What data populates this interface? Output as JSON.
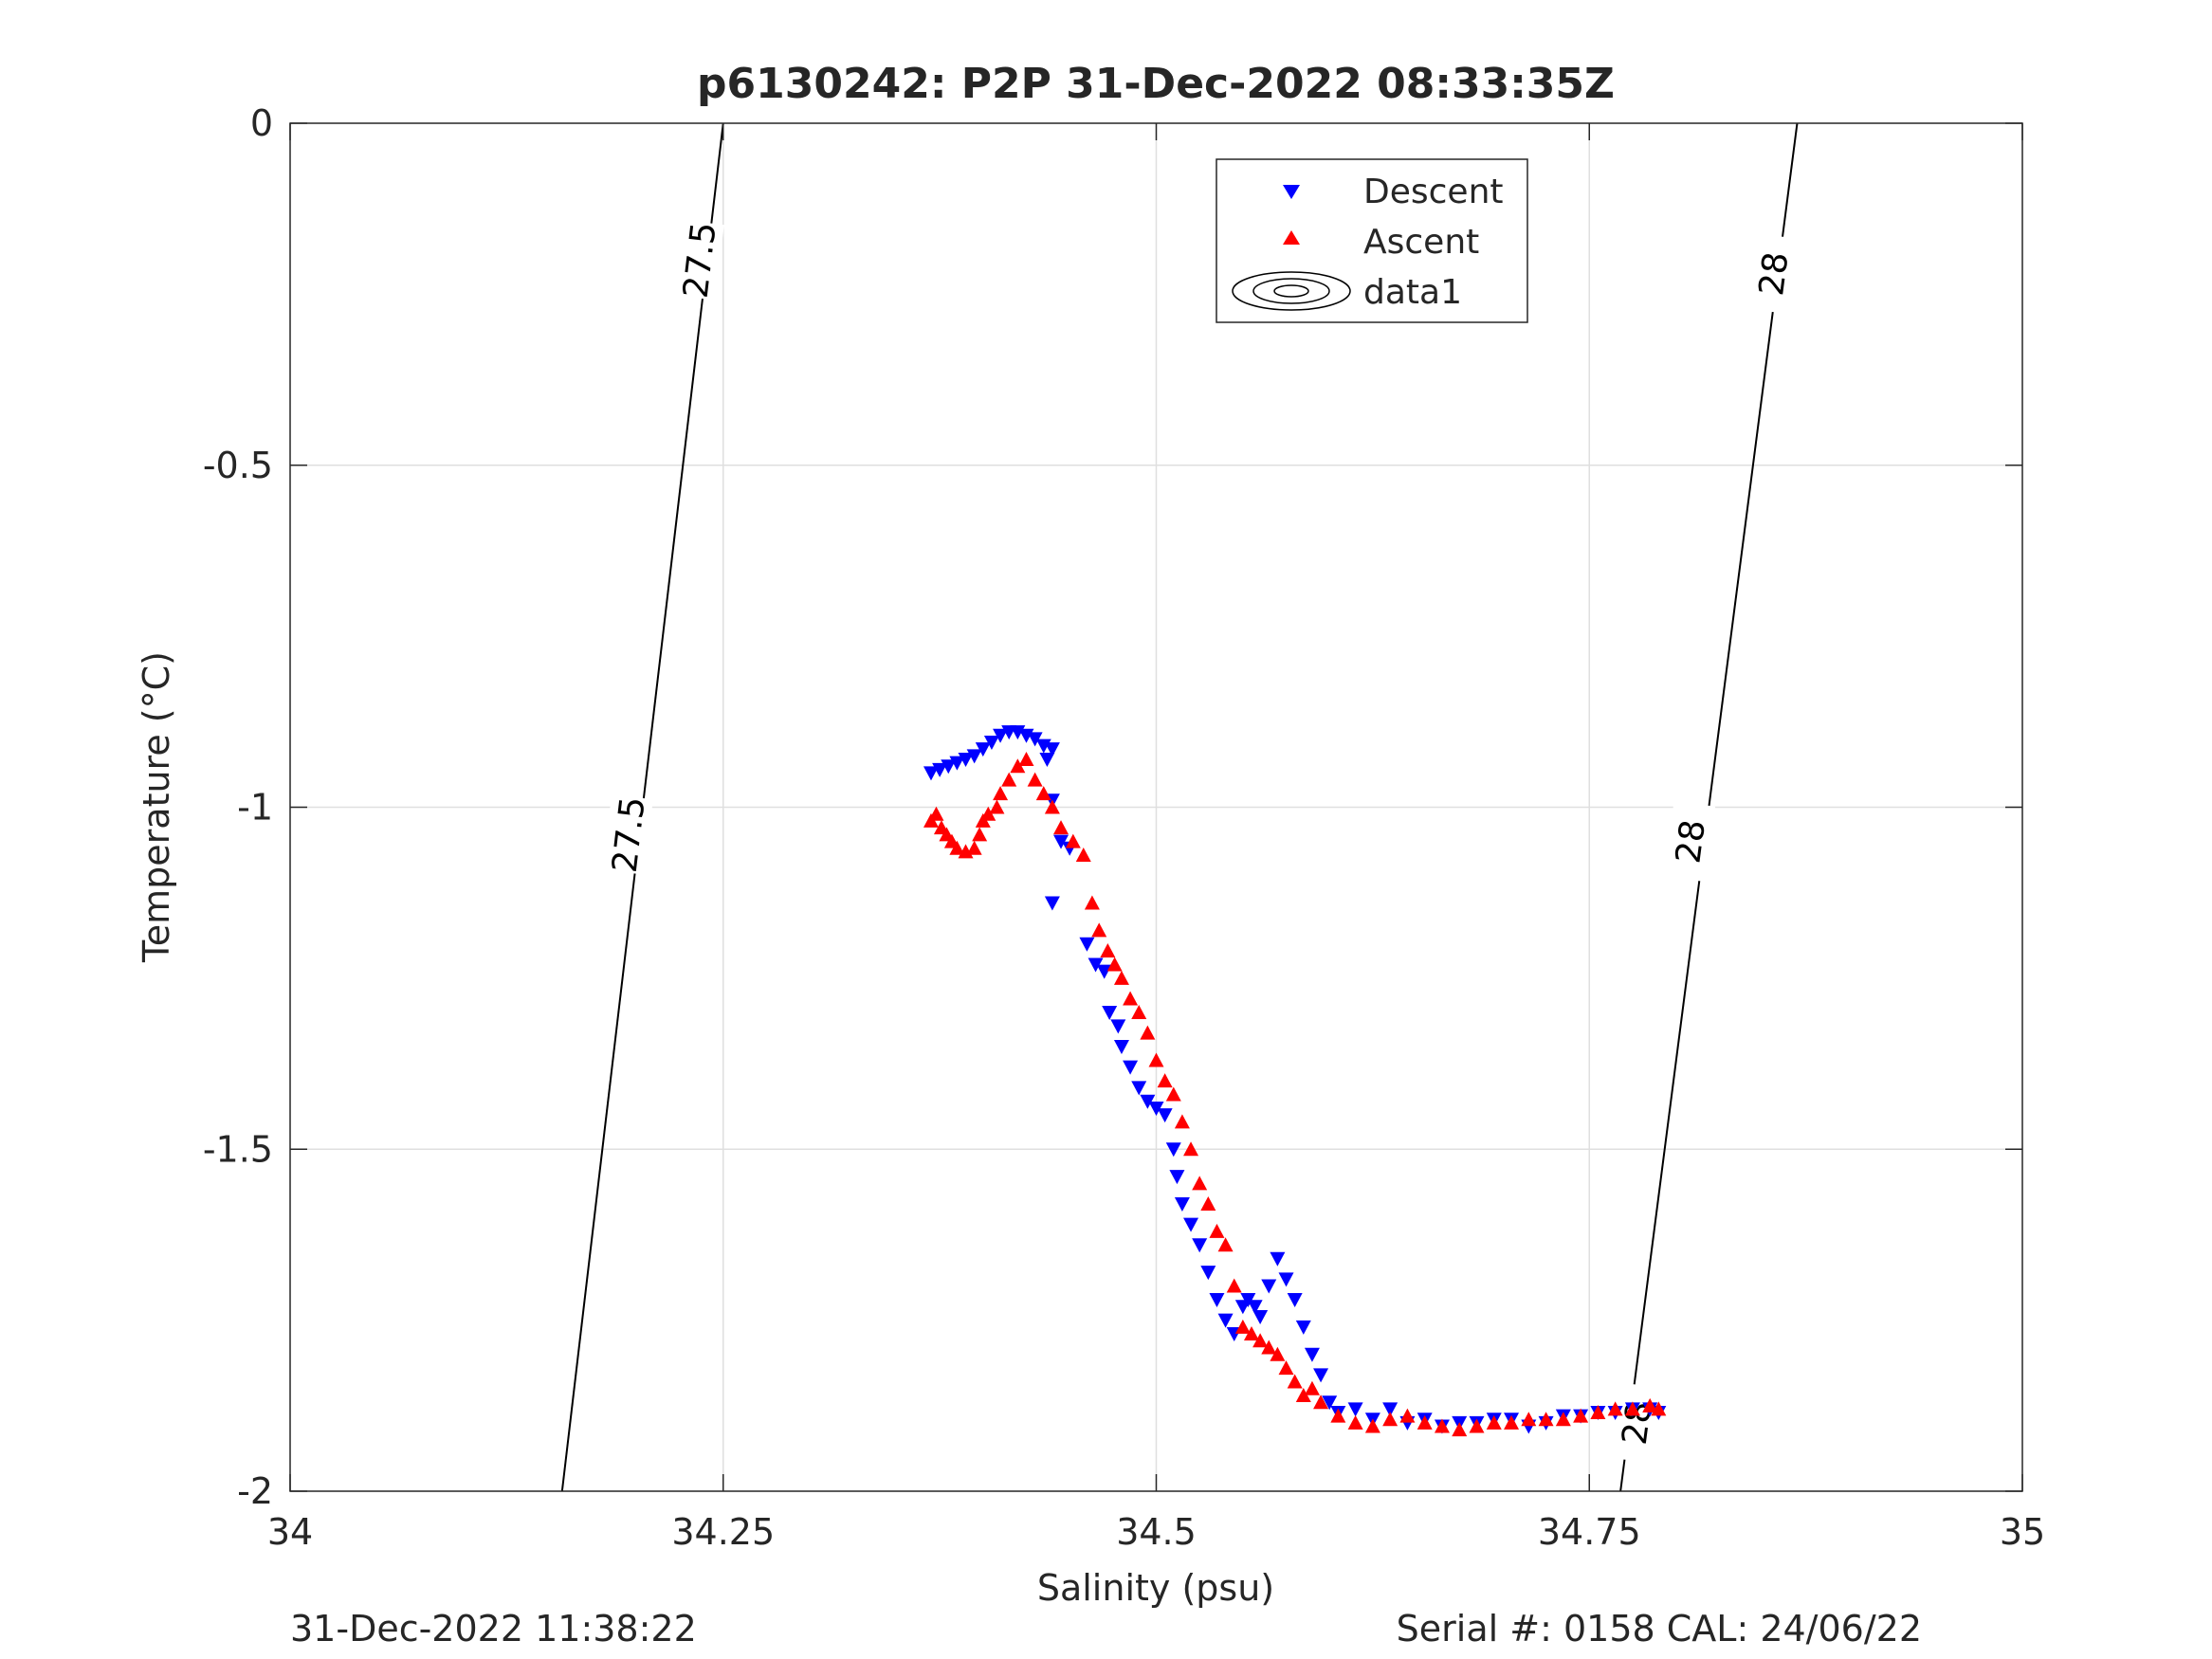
{
  "chart_data": {
    "type": "scatter",
    "title": "p6130242: P2P 31-Dec-2022 08:33:35Z",
    "xlabel": "Salinity (psu)",
    "ylabel": "Temperature (°C)",
    "xlim": [
      34,
      35
    ],
    "ylim": [
      -2,
      0
    ],
    "x_ticks": [
      34,
      34.25,
      34.5,
      34.75,
      35
    ],
    "x_tick_labels": [
      "34",
      "34.25",
      "34.5",
      "34.75",
      "35"
    ],
    "y_ticks": [
      0,
      -0.5,
      -1,
      -1.5,
      -2
    ],
    "y_tick_labels": [
      "0",
      "-0.5",
      "-1",
      "-1.5",
      "-2"
    ],
    "grid": true,
    "legend_position": "top-center",
    "series": [
      {
        "name": "Descent",
        "marker": "triangle-down",
        "color": "#0000ff",
        "points": [
          [
            34.37,
            -0.95
          ],
          [
            34.375,
            -0.945
          ],
          [
            34.38,
            -0.94
          ],
          [
            34.385,
            -0.935
          ],
          [
            34.39,
            -0.93
          ],
          [
            34.395,
            -0.925
          ],
          [
            34.4,
            -0.915
          ],
          [
            34.405,
            -0.905
          ],
          [
            34.41,
            -0.895
          ],
          [
            34.415,
            -0.89
          ],
          [
            34.42,
            -0.89
          ],
          [
            34.425,
            -0.895
          ],
          [
            34.43,
            -0.9
          ],
          [
            34.435,
            -0.91
          ],
          [
            34.44,
            -0.915
          ],
          [
            34.437,
            -0.93
          ],
          [
            34.44,
            -0.99
          ],
          [
            34.445,
            -1.05
          ],
          [
            34.45,
            -1.06
          ],
          [
            34.44,
            -1.14
          ],
          [
            34.46,
            -1.2
          ],
          [
            34.465,
            -1.23
          ],
          [
            34.47,
            -1.24
          ],
          [
            34.473,
            -1.3
          ],
          [
            34.478,
            -1.32
          ],
          [
            34.48,
            -1.35
          ],
          [
            34.485,
            -1.38
          ],
          [
            34.49,
            -1.41
          ],
          [
            34.495,
            -1.43
          ],
          [
            34.5,
            -1.44
          ],
          [
            34.505,
            -1.45
          ],
          [
            34.51,
            -1.5
          ],
          [
            34.512,
            -1.54
          ],
          [
            34.515,
            -1.58
          ],
          [
            34.52,
            -1.61
          ],
          [
            34.525,
            -1.64
          ],
          [
            34.53,
            -1.68
          ],
          [
            34.535,
            -1.72
          ],
          [
            34.54,
            -1.75
          ],
          [
            34.545,
            -1.77
          ],
          [
            34.55,
            -1.73
          ],
          [
            34.553,
            -1.72
          ],
          [
            34.557,
            -1.73
          ],
          [
            34.56,
            -1.745
          ],
          [
            34.565,
            -1.7
          ],
          [
            34.57,
            -1.66
          ],
          [
            34.575,
            -1.69
          ],
          [
            34.58,
            -1.72
          ],
          [
            34.585,
            -1.76
          ],
          [
            34.59,
            -1.8
          ],
          [
            34.595,
            -1.83
          ],
          [
            34.6,
            -1.87
          ],
          [
            34.605,
            -1.885
          ],
          [
            34.615,
            -1.88
          ],
          [
            34.625,
            -1.895
          ],
          [
            34.635,
            -1.88
          ],
          [
            34.645,
            -1.9
          ],
          [
            34.655,
            -1.895
          ],
          [
            34.665,
            -1.905
          ],
          [
            34.675,
            -1.9
          ],
          [
            34.685,
            -1.9
          ],
          [
            34.695,
            -1.895
          ],
          [
            34.705,
            -1.895
          ],
          [
            34.715,
            -1.905
          ],
          [
            34.725,
            -1.9
          ],
          [
            34.735,
            -1.89
          ],
          [
            34.745,
            -1.89
          ],
          [
            34.755,
            -1.885
          ],
          [
            34.765,
            -1.885
          ],
          [
            34.775,
            -1.88
          ],
          [
            34.785,
            -1.88
          ],
          [
            34.79,
            -1.885
          ]
        ]
      },
      {
        "name": "Ascent",
        "marker": "triangle-up",
        "color": "#ff0000",
        "points": [
          [
            34.37,
            -1.02
          ],
          [
            34.373,
            -1.01
          ],
          [
            34.376,
            -1.03
          ],
          [
            34.379,
            -1.04
          ],
          [
            34.382,
            -1.05
          ],
          [
            34.385,
            -1.06
          ],
          [
            34.39,
            -1.065
          ],
          [
            34.395,
            -1.06
          ],
          [
            34.398,
            -1.04
          ],
          [
            34.4,
            -1.02
          ],
          [
            34.403,
            -1.01
          ],
          [
            34.408,
            -1.0
          ],
          [
            34.41,
            -0.98
          ],
          [
            34.415,
            -0.96
          ],
          [
            34.42,
            -0.94
          ],
          [
            34.425,
            -0.93
          ],
          [
            34.43,
            -0.96
          ],
          [
            34.435,
            -0.98
          ],
          [
            34.44,
            -1.0
          ],
          [
            34.445,
            -1.03
          ],
          [
            34.452,
            -1.05
          ],
          [
            34.458,
            -1.07
          ],
          [
            34.463,
            -1.14
          ],
          [
            34.467,
            -1.18
          ],
          [
            34.472,
            -1.21
          ],
          [
            34.476,
            -1.23
          ],
          [
            34.48,
            -1.25
          ],
          [
            34.485,
            -1.28
          ],
          [
            34.49,
            -1.3
          ],
          [
            34.495,
            -1.33
          ],
          [
            34.5,
            -1.37
          ],
          [
            34.505,
            -1.4
          ],
          [
            34.51,
            -1.42
          ],
          [
            34.515,
            -1.46
          ],
          [
            34.52,
            -1.5
          ],
          [
            34.525,
            -1.55
          ],
          [
            34.53,
            -1.58
          ],
          [
            34.535,
            -1.62
          ],
          [
            34.54,
            -1.64
          ],
          [
            34.545,
            -1.7
          ],
          [
            34.55,
            -1.76
          ],
          [
            34.555,
            -1.77
          ],
          [
            34.56,
            -1.78
          ],
          [
            34.565,
            -1.79
          ],
          [
            34.57,
            -1.8
          ],
          [
            34.575,
            -1.82
          ],
          [
            34.58,
            -1.84
          ],
          [
            34.585,
            -1.86
          ],
          [
            34.59,
            -1.85
          ],
          [
            34.595,
            -1.87
          ],
          [
            34.605,
            -1.89
          ],
          [
            34.615,
            -1.9
          ],
          [
            34.625,
            -1.905
          ],
          [
            34.635,
            -1.895
          ],
          [
            34.645,
            -1.89
          ],
          [
            34.655,
            -1.9
          ],
          [
            34.665,
            -1.905
          ],
          [
            34.675,
            -1.91
          ],
          [
            34.685,
            -1.905
          ],
          [
            34.695,
            -1.9
          ],
          [
            34.705,
            -1.9
          ],
          [
            34.715,
            -1.895
          ],
          [
            34.725,
            -1.895
          ],
          [
            34.735,
            -1.895
          ],
          [
            34.745,
            -1.89
          ],
          [
            34.755,
            -1.885
          ],
          [
            34.765,
            -1.88
          ],
          [
            34.775,
            -1.88
          ],
          [
            34.785,
            -1.875
          ],
          [
            34.79,
            -1.88
          ]
        ]
      },
      {
        "name": "data1",
        "marker": "contour",
        "color": "#000000",
        "levels": [
          {
            "label": "27.5",
            "points": [
              [
                34.157,
                -2.0
              ],
              [
                34.25,
                0.0
              ]
            ],
            "label_positions": [
              [
                34.195,
                -1.04
              ],
              [
                34.236,
                -0.2
              ]
            ]
          },
          {
            "label": "28",
            "points": [
              [
                34.768,
                -2.0
              ],
              [
                34.87,
                0.0
              ]
            ],
            "label_positions": [
              [
                34.777,
                -1.9
              ],
              [
                34.808,
                -1.05
              ],
              [
                34.856,
                -0.22
              ]
            ]
          }
        ]
      }
    ]
  },
  "footer": {
    "left": "31-Dec-2022 11:38:22",
    "right": "Serial #: 0158  CAL: 24/06/22"
  }
}
